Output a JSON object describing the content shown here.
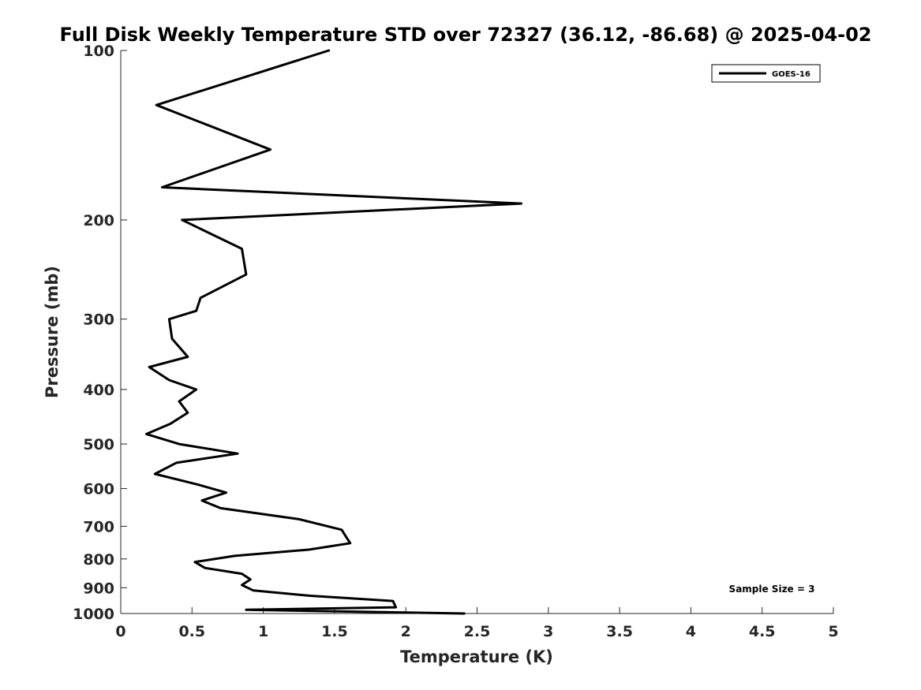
{
  "chart_data": {
    "type": "line",
    "title": "Full Disk Weekly Temperature STD over 72327 (36.12, -86.68) @ 2025-04-02",
    "xlabel": "Temperature (K)",
    "ylabel": "Pressure (mb)",
    "xlim": [
      0,
      5
    ],
    "ylim": [
      100,
      1000
    ],
    "y_scale": "log",
    "y_reversed": true,
    "x_ticks": [
      "0",
      "0.5",
      "1",
      "1.5",
      "2",
      "2.5",
      "3",
      "3.5",
      "4",
      "4.5",
      "5"
    ],
    "y_ticks": [
      "100",
      "200",
      "300",
      "400",
      "500",
      "600",
      "700",
      "800",
      "900",
      "1000"
    ],
    "grid": false,
    "legend": {
      "placement": "top-right",
      "entries": [
        "GOES-16"
      ]
    },
    "annotation": "Sample Size = 3",
    "series": [
      {
        "name": "GOES-16",
        "color": "#000000",
        "points": [
          [
            1.46,
            100
          ],
          [
            0.25,
            125
          ],
          [
            1.05,
            150
          ],
          [
            0.29,
            175
          ],
          [
            2.81,
            187
          ],
          [
            0.43,
            200
          ],
          [
            0.85,
            225
          ],
          [
            0.88,
            250
          ],
          [
            0.56,
            275
          ],
          [
            0.53,
            290
          ],
          [
            0.34,
            300
          ],
          [
            0.36,
            325
          ],
          [
            0.47,
            350
          ],
          [
            0.2,
            365
          ],
          [
            0.34,
            385
          ],
          [
            0.53,
            400
          ],
          [
            0.41,
            420
          ],
          [
            0.47,
            440
          ],
          [
            0.35,
            460
          ],
          [
            0.18,
            480
          ],
          [
            0.41,
            500
          ],
          [
            0.82,
            520
          ],
          [
            0.39,
            540
          ],
          [
            0.24,
            565
          ],
          [
            0.54,
            590
          ],
          [
            0.74,
            610
          ],
          [
            0.57,
            630
          ],
          [
            0.7,
            650
          ],
          [
            1.25,
            680
          ],
          [
            1.55,
            710
          ],
          [
            1.58,
            730
          ],
          [
            1.61,
            750
          ],
          [
            1.32,
            770
          ],
          [
            0.8,
            790
          ],
          [
            0.52,
            810
          ],
          [
            0.59,
            830
          ],
          [
            0.85,
            850
          ],
          [
            0.91,
            870
          ],
          [
            0.85,
            890
          ],
          [
            0.93,
            910
          ],
          [
            1.33,
            930
          ],
          [
            1.91,
            950
          ],
          [
            1.93,
            975
          ],
          [
            0.88,
            985
          ],
          [
            2.41,
            1000
          ]
        ]
      }
    ]
  }
}
